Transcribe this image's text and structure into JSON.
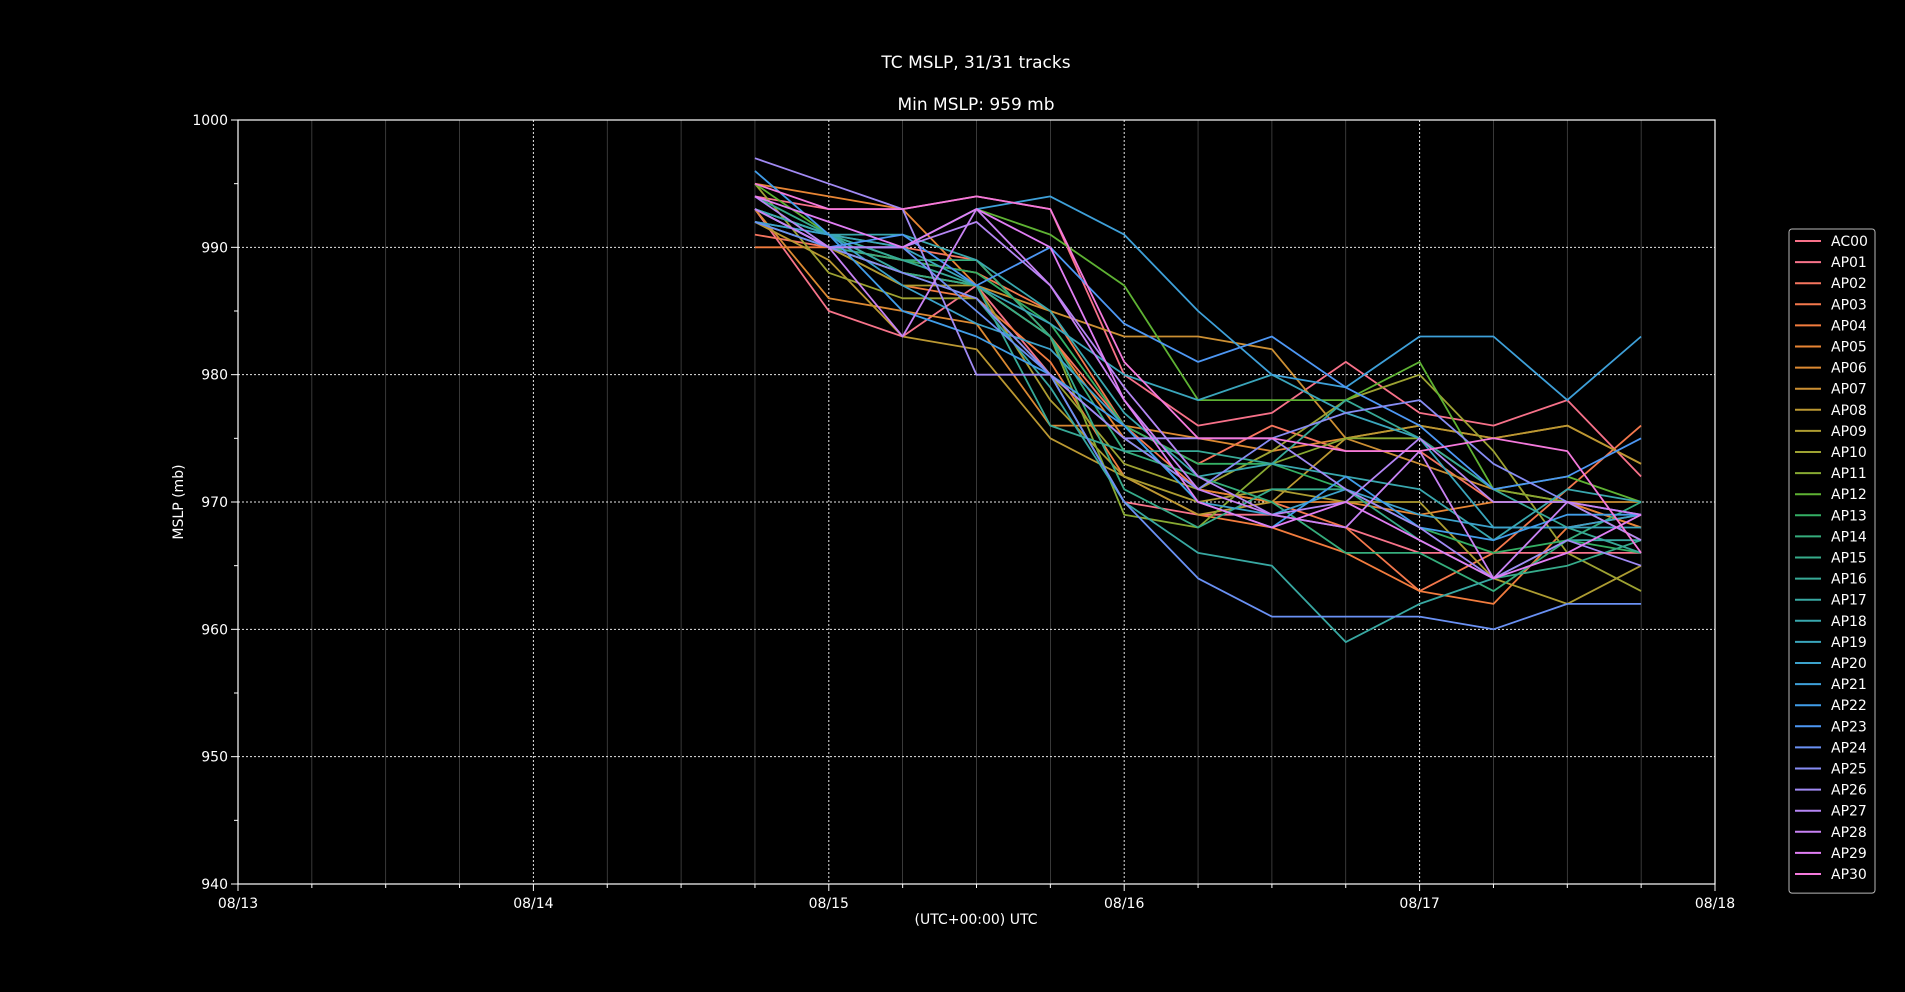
{
  "chart_data": {
    "type": "line",
    "title": "TC MSLP, 31/31 tracks",
    "subtitle": "Min MSLP: 959 mb",
    "xlabel": "(UTC+00:00) UTC",
    "ylabel": "MSLP (mb)",
    "ylim": [
      940,
      1000
    ],
    "yticks": [
      "1000",
      "990",
      "980",
      "970",
      "960",
      "950",
      "940"
    ],
    "xlim": [
      "08/13 00:00",
      "08/18 00:00"
    ],
    "xtick_labels": [
      "08/13",
      "08/14",
      "08/15",
      "08/16",
      "08/17",
      "08/18"
    ],
    "x": [
      "08/14 18:00",
      "08/15 00:00",
      "08/15 06:00",
      "08/15 12:00",
      "08/15 18:00",
      "08/16 00:00",
      "08/16 06:00",
      "08/16 12:00",
      "08/16 18:00",
      "08/17 00:00",
      "08/17 06:00",
      "08/17 12:00",
      "08/17 18:00"
    ],
    "grid": "on",
    "legend_position": "right",
    "series": [
      {
        "name": "AC00",
        "color": "#f77189",
        "values": [
          994,
          993,
          993,
          994,
          993,
          980,
          976,
          977,
          981,
          977,
          976,
          978,
          972
        ]
      },
      {
        "name": "AP01",
        "color": "#f7738a",
        "values": [
          993,
          985,
          983,
          987,
          980,
          970,
          969,
          969,
          968,
          966,
          966,
          966,
          966
        ]
      },
      {
        "name": "AP02",
        "color": "#f6755f",
        "values": [
          991,
          990,
          990,
          989,
          983,
          976,
          973,
          976,
          974,
          974,
          970,
          970,
          968
        ]
      },
      {
        "name": "AP03",
        "color": "#f4784c",
        "values": [
          992,
          990,
          989,
          988,
          985,
          976,
          971,
          970,
          968,
          963,
          966,
          971,
          976
        ]
      },
      {
        "name": "AP04",
        "color": "#f27c3e",
        "values": [
          990,
          990,
          987,
          986,
          981,
          972,
          969,
          968,
          966,
          963,
          962,
          968,
          969
        ]
      },
      {
        "name": "AP05",
        "color": "#e78534",
        "values": [
          995,
          994,
          993,
          987,
          983,
          975,
          971,
          970,
          970,
          969,
          970,
          970,
          968
        ]
      },
      {
        "name": "AP06",
        "color": "#dc8932",
        "values": [
          993,
          986,
          985,
          984,
          976,
          976,
          975,
          974,
          975,
          976,
          975,
          976,
          973
        ]
      },
      {
        "name": "AP07",
        "color": "#cc8f33",
        "values": [
          993,
          990,
          988,
          987,
          985,
          983,
          983,
          982,
          975,
          973,
          971,
          970,
          970
        ]
      },
      {
        "name": "AP08",
        "color": "#bb9832",
        "values": [
          992,
          989,
          983,
          982,
          975,
          972,
          969,
          970,
          975,
          976,
          975,
          976,
          973
        ]
      },
      {
        "name": "AP09",
        "color": "#ad9c31",
        "values": [
          993,
          990,
          987,
          987,
          978,
          972,
          970,
          971,
          970,
          970,
          964,
          962,
          965
        ]
      },
      {
        "name": "AP10",
        "color": "#9da232",
        "values": [
          995,
          988,
          986,
          986,
          980,
          973,
          971,
          974,
          978,
          980,
          974,
          966,
          963
        ]
      },
      {
        "name": "AP11",
        "color": "#87a932",
        "values": [
          993,
          990,
          988,
          987,
          983,
          969,
          968,
          973,
          975,
          975,
          971,
          970,
          967
        ]
      },
      {
        "name": "AP12",
        "color": "#5eb233",
        "values": [
          995,
          991,
          990,
          993,
          991,
          987,
          978,
          978,
          978,
          981,
          971,
          972,
          970
        ]
      },
      {
        "name": "AP13",
        "color": "#34af64",
        "values": [
          993,
          991,
          989,
          988,
          984,
          976,
          973,
          973,
          971,
          968,
          966,
          967,
          966
        ]
      },
      {
        "name": "AP14",
        "color": "#35ad7c",
        "values": [
          992,
          990,
          989,
          989,
          983,
          974,
          972,
          970,
          966,
          966,
          963,
          967,
          970
        ]
      },
      {
        "name": "AP15",
        "color": "#36ab8a",
        "values": [
          994,
          991,
          988,
          987,
          983,
          971,
          968,
          971,
          971,
          967,
          964,
          965,
          967
        ]
      },
      {
        "name": "AP16",
        "color": "#37a996",
        "values": [
          993,
          991,
          989,
          987,
          976,
          974,
          974,
          973,
          978,
          975,
          971,
          968,
          966
        ]
      },
      {
        "name": "AP17",
        "color": "#38a8a2",
        "values": [
          993,
          991,
          988,
          986,
          979,
          970,
          966,
          965,
          959,
          962,
          964,
          967,
          967
        ]
      },
      {
        "name": "AP18",
        "color": "#39a7ae",
        "values": [
          993,
          991,
          991,
          989,
          985,
          977,
          972,
          973,
          972,
          971,
          967,
          971,
          970
        ]
      },
      {
        "name": "AP19",
        "color": "#3aa5bb",
        "values": [
          992,
          991,
          990,
          987,
          984,
          980,
          978,
          980,
          977,
          975,
          968,
          968,
          968
        ]
      },
      {
        "name": "AP20",
        "color": "#3ca2cb",
        "values": [
          992,
          991,
          987,
          984,
          982,
          976,
          970,
          969,
          971,
          969,
          968,
          968,
          969
        ]
      },
      {
        "name": "AP21",
        "color": "#3ea0d9",
        "values": [
          993,
          990,
          990,
          993,
          994,
          991,
          985,
          980,
          979,
          983,
          983,
          978,
          983
        ]
      },
      {
        "name": "AP22",
        "color": "#419de9",
        "values": [
          996,
          991,
          985,
          983,
          980,
          976,
          970,
          968,
          972,
          968,
          967,
          969,
          969
        ]
      },
      {
        "name": "AP23",
        "color": "#4d97f4",
        "values": [
          993,
          990,
          991,
          987,
          990,
          984,
          981,
          983,
          979,
          976,
          971,
          972,
          975
        ]
      },
      {
        "name": "AP24",
        "color": "#6a91f4",
        "values": [
          992,
          990,
          990,
          985,
          980,
          970,
          964,
          961,
          961,
          961,
          960,
          962,
          962
        ]
      },
      {
        "name": "AP25",
        "color": "#878df4",
        "values": [
          993,
          990,
          988,
          986,
          980,
          975,
          971,
          975,
          977,
          978,
          973,
          970,
          969
        ]
      },
      {
        "name": "AP26",
        "color": "#a18af4",
        "values": [
          997,
          995,
          993,
          980,
          980,
          975,
          975,
          975,
          971,
          968,
          964,
          967,
          965
        ]
      },
      {
        "name": "AP27",
        "color": "#b586f4",
        "values": [
          994,
          990,
          990,
          992,
          987,
          979,
          972,
          969,
          970,
          975,
          970,
          970,
          967
        ]
      },
      {
        "name": "AP28",
        "color": "#c882f4",
        "values": [
          993,
          990,
          983,
          993,
          987,
          978,
          971,
          969,
          968,
          974,
          964,
          970,
          969
        ]
      },
      {
        "name": "AP29",
        "color": "#e17ef4",
        "values": [
          994,
          992,
          990,
          993,
          990,
          978,
          970,
          968,
          970,
          967,
          964,
          966,
          969
        ]
      },
      {
        "name": "AP30",
        "color": "#f479dc",
        "values": [
          995,
          993,
          993,
          994,
          993,
          981,
          975,
          975,
          974,
          974,
          975,
          974,
          966
        ]
      }
    ]
  }
}
